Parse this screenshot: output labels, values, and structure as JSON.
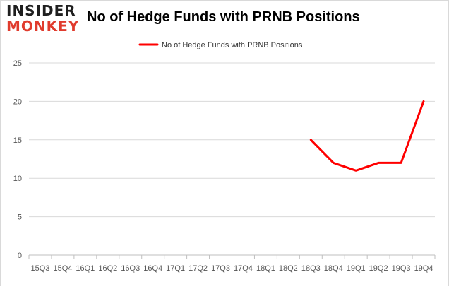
{
  "logo": {
    "line1": "INSIDER",
    "line2": "MONKEY"
  },
  "colors": {
    "series": "#ff0000",
    "logo_red": "#e03b2d",
    "grid": "#d9d9d9",
    "axis": "#bfbfbf"
  },
  "chart_data": {
    "type": "line",
    "title": "No of Hedge Funds with PRNB Positions",
    "xlabel": "",
    "ylabel": "",
    "categories": [
      "15Q3",
      "15Q4",
      "16Q1",
      "16Q2",
      "16Q3",
      "16Q4",
      "17Q1",
      "17Q2",
      "17Q3",
      "17Q4",
      "18Q1",
      "18Q2",
      "18Q3",
      "18Q4",
      "19Q1",
      "19Q2",
      "19Q3",
      "19Q4"
    ],
    "series": [
      {
        "name": "No of Hedge Funds with PRNB Positions",
        "values": [
          null,
          null,
          null,
          null,
          null,
          null,
          null,
          null,
          null,
          null,
          null,
          null,
          15,
          12,
          11,
          12,
          12,
          20
        ]
      }
    ],
    "ylim": [
      0,
      25
    ],
    "yticks": [
      0,
      5,
      10,
      15,
      20,
      25
    ],
    "grid": "horizontal",
    "legend": "top-center"
  }
}
